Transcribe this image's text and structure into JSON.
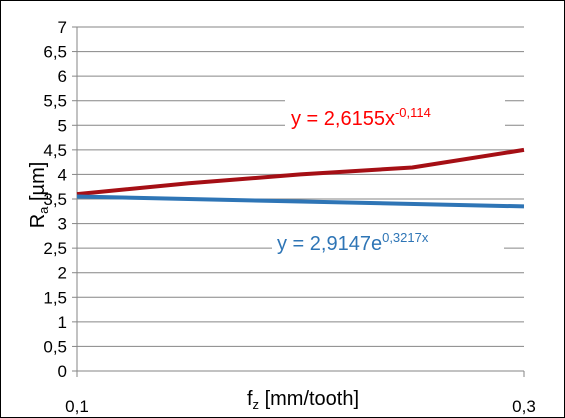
{
  "chart_data": {
    "type": "line",
    "xlabel": "f",
    "xlabel_sub": "z",
    "xlabel_unit": "[mm/tooth]",
    "ylabel": "R",
    "ylabel_sub": "a",
    "ylabel_unit": "[µm]",
    "x_ticks": [
      "0,1",
      "0,3"
    ],
    "x_range": [
      0.1,
      0.3
    ],
    "y_ticks": [
      "0",
      "0,5",
      "1",
      "1,5",
      "2",
      "2,5",
      "3",
      "3,5",
      "4",
      "4,5",
      "5",
      "5,5",
      "6",
      "6,5",
      "7"
    ],
    "ylim": [
      0,
      7
    ],
    "grid": "horizontal",
    "series": [
      {
        "color": "#a50f15",
        "x": [
          0.1,
          0.15,
          0.2,
          0.25,
          0.3
        ],
        "values": [
          3.6,
          3.82,
          4.0,
          4.14,
          4.5
        ]
      },
      {
        "color": "#2e75b6",
        "x": [
          0.1,
          0.2,
          0.3
        ],
        "values": [
          3.55,
          3.45,
          3.35
        ]
      }
    ],
    "annotations": [
      {
        "color": "#ff0000",
        "base": "y = 2,6155x",
        "sup": "-0,114"
      },
      {
        "color": "#2e75b6",
        "base": "y = 2,9147e",
        "sup": "0,3217x"
      }
    ]
  }
}
